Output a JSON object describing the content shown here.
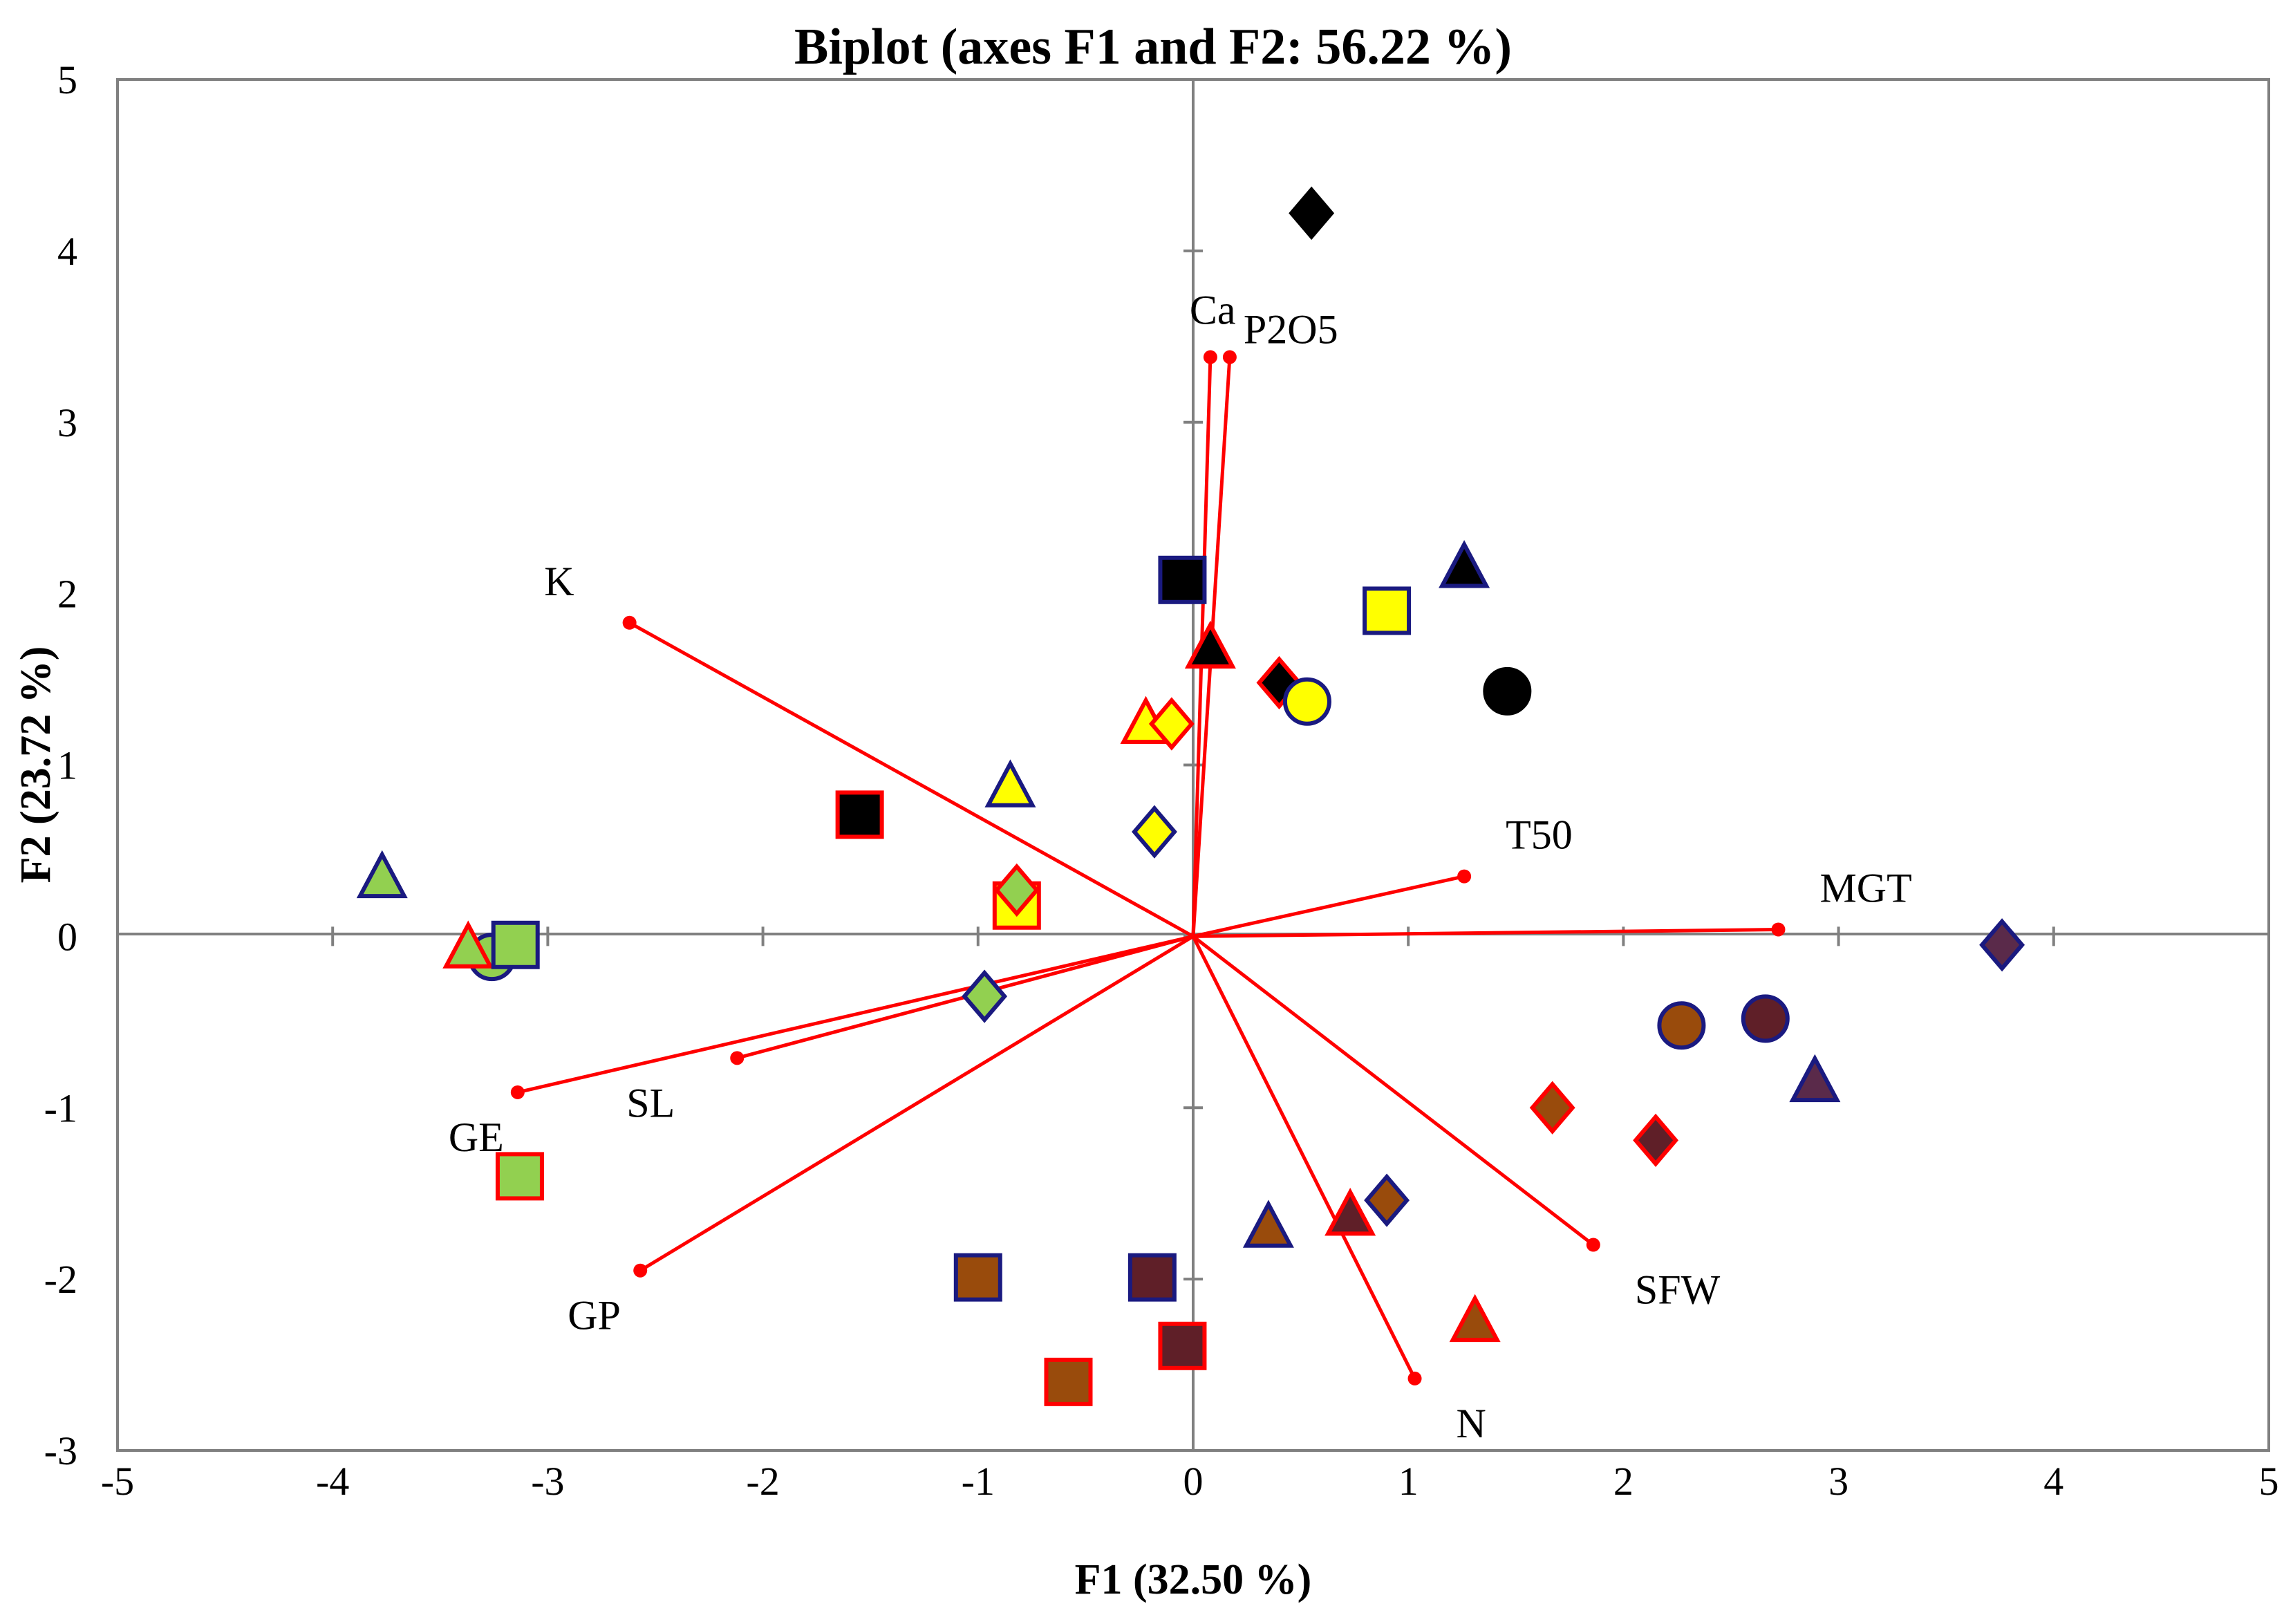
{
  "chart_data": {
    "type": "scatter",
    "subtype": "pca-biplot",
    "title": "Biplot (axes F1 and F2: 56.22 %)",
    "xlabel": "F1 (32.50 %)",
    "ylabel": "F2 (23.72 %)",
    "xlim": [
      -5,
      5
    ],
    "ylim": [
      -3,
      5
    ],
    "x_ticks": [
      -5,
      -4,
      -3,
      -2,
      -1,
      0,
      1,
      2,
      3,
      4,
      5
    ],
    "y_ticks": [
      -3,
      -2,
      -1,
      0,
      1,
      2,
      3,
      4,
      5
    ],
    "x_tick_labels": [
      "-5",
      "-4",
      "-3",
      "-2",
      "-1",
      "0",
      "1",
      "2",
      "3",
      "4",
      "5"
    ],
    "y_tick_labels": [
      "-3",
      "-2",
      "-1",
      "0",
      "1",
      "2",
      "3",
      "4",
      "5"
    ],
    "grid": false,
    "vector_color": "#ff0000",
    "vectors": [
      {
        "name": "Ca",
        "x": 0.08,
        "y": 3.38
      },
      {
        "name": "P2O5",
        "x": 0.17,
        "y": 3.38
      },
      {
        "name": "K",
        "x": -2.62,
        "y": 1.83
      },
      {
        "name": "T50",
        "x": 1.26,
        "y": 0.35
      },
      {
        "name": "MGT",
        "x": 2.72,
        "y": 0.04
      },
      {
        "name": "SL",
        "x": -2.12,
        "y": -0.71
      },
      {
        "name": "GE",
        "x": -3.14,
        "y": -0.91
      },
      {
        "name": "GP",
        "x": -2.57,
        "y": -1.95
      },
      {
        "name": "SFW",
        "x": 1.86,
        "y": -1.8
      },
      {
        "name": "N",
        "x": 1.03,
        "y": -2.58
      }
    ],
    "points": [
      {
        "x": 0.55,
        "y": 4.22,
        "shape": "diamond",
        "fill": "#000000",
        "edge": "#000000"
      },
      {
        "x": 1.46,
        "y": 1.43,
        "shape": "circle",
        "fill": "#000000",
        "edge": "#000000"
      },
      {
        "x": 1.26,
        "y": 2.15,
        "shape": "triangle",
        "fill": "#000000",
        "edge": "#1a1a80"
      },
      {
        "x": -0.05,
        "y": 2.08,
        "shape": "square",
        "fill": "#000000",
        "edge": "#1a1a80"
      },
      {
        "x": 0.08,
        "y": 1.68,
        "shape": "triangle",
        "fill": "#000000",
        "edge": "#ff0000"
      },
      {
        "x": 0.4,
        "y": 1.48,
        "shape": "diamond",
        "fill": "#000000",
        "edge": "#ff0000"
      },
      {
        "x": -1.55,
        "y": 0.71,
        "shape": "square",
        "fill": "#000000",
        "edge": "#ff0000"
      },
      {
        "x": 0.9,
        "y": 1.9,
        "shape": "square",
        "fill": "#ffff00",
        "edge": "#1a1a80"
      },
      {
        "x": 0.53,
        "y": 1.37,
        "shape": "circle",
        "fill": "#ffff00",
        "edge": "#1a1a80"
      },
      {
        "x": -0.22,
        "y": 1.24,
        "shape": "triangle",
        "fill": "#ffff00",
        "edge": "#ff0000"
      },
      {
        "x": -0.1,
        "y": 1.24,
        "shape": "diamond",
        "fill": "#ffff00",
        "edge": "#ff0000"
      },
      {
        "x": -0.85,
        "y": 0.87,
        "shape": "triangle",
        "fill": "#ffff00",
        "edge": "#1a1a80"
      },
      {
        "x": -0.18,
        "y": 0.61,
        "shape": "diamond",
        "fill": "#ffff00",
        "edge": "#1a1a80"
      },
      {
        "x": -0.82,
        "y": 0.18,
        "shape": "square",
        "fill": "#ffff00",
        "edge": "#ff0000"
      },
      {
        "x": -0.82,
        "y": 0.27,
        "shape": "diamond",
        "fill": "#92d050",
        "edge": "#ff0000"
      },
      {
        "x": -3.77,
        "y": 0.34,
        "shape": "triangle",
        "fill": "#92d050",
        "edge": "#1a1a80"
      },
      {
        "x": -3.26,
        "y": -0.12,
        "shape": "circle",
        "fill": "#92d050",
        "edge": "#1a1a80"
      },
      {
        "x": -3.37,
        "y": -0.07,
        "shape": "triangle",
        "fill": "#92d050",
        "edge": "#ff0000"
      },
      {
        "x": -3.15,
        "y": -0.05,
        "shape": "square",
        "fill": "#92d050",
        "edge": "#1a1a80"
      },
      {
        "x": -0.97,
        "y": -0.35,
        "shape": "diamond",
        "fill": "#92d050",
        "edge": "#1a1a80"
      },
      {
        "x": -3.13,
        "y": -1.4,
        "shape": "square",
        "fill": "#92d050",
        "edge": "#ff0000"
      },
      {
        "x": 3.76,
        "y": -0.05,
        "shape": "diamond",
        "fill": "#5a2a4a",
        "edge": "#1a1a80"
      },
      {
        "x": 2.66,
        "y": -0.48,
        "shape": "circle",
        "fill": "#5f1f28",
        "edge": "#1a1a80"
      },
      {
        "x": 2.89,
        "y": -0.85,
        "shape": "triangle",
        "fill": "#5a2a4a",
        "edge": "#1a1a80"
      },
      {
        "x": 2.15,
        "y": -1.19,
        "shape": "diamond",
        "fill": "#5f1f28",
        "edge": "#ff0000"
      },
      {
        "x": -0.19,
        "y": -1.99,
        "shape": "square",
        "fill": "#5f1f28",
        "edge": "#1a1a80"
      },
      {
        "x": -0.05,
        "y": -2.39,
        "shape": "square",
        "fill": "#5f1f28",
        "edge": "#ff0000"
      },
      {
        "x": 0.73,
        "y": -1.63,
        "shape": "triangle",
        "fill": "#5f1f28",
        "edge": "#ff0000"
      },
      {
        "x": 2.27,
        "y": -0.52,
        "shape": "circle",
        "fill": "#994b0c",
        "edge": "#1a1a80"
      },
      {
        "x": 1.67,
        "y": -1.0,
        "shape": "diamond",
        "fill": "#994b0c",
        "edge": "#ff0000"
      },
      {
        "x": 0.9,
        "y": -1.54,
        "shape": "diamond",
        "fill": "#994b0c",
        "edge": "#1a1a80"
      },
      {
        "x": 0.35,
        "y": -1.7,
        "shape": "triangle",
        "fill": "#994b0c",
        "edge": "#1a1a80"
      },
      {
        "x": 1.31,
        "y": -2.25,
        "shape": "triangle",
        "fill": "#994b0c",
        "edge": "#ff0000"
      },
      {
        "x": -1.0,
        "y": -1.99,
        "shape": "square",
        "fill": "#994b0c",
        "edge": "#1a1a80"
      },
      {
        "x": -0.58,
        "y": -2.6,
        "shape": "square",
        "fill": "#994b0c",
        "edge": "#ff0000"
      }
    ]
  }
}
